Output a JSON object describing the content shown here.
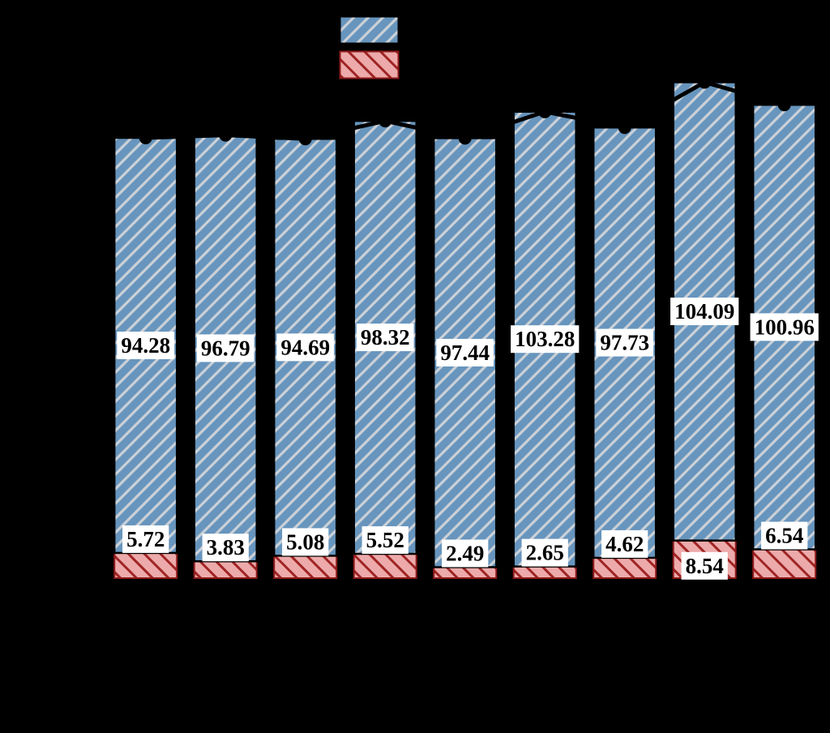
{
  "page": {
    "background": "#000000"
  },
  "colors": {
    "blue_fill": "#6795bd",
    "blue_hatch": "#ccd1d7",
    "blue_edge": "#000000",
    "red_fill": "#edaaaa",
    "red_hatch": "#a02424",
    "red_edge": "#8e1a1a",
    "line": "#000000",
    "marker": "#000000",
    "label_text": "#000000",
    "label_bg": "#ffffff"
  },
  "legend": {
    "items": [
      {
        "id": "blue-hatched-patch",
        "hatch_direction": "/",
        "fill": "#6795bd"
      },
      {
        "id": "red-hatched-patch",
        "hatch_direction": "\\",
        "fill": "#edaaaa"
      }
    ]
  },
  "chart_data": {
    "type": "bar",
    "stacked": true,
    "orientation": "vertical",
    "n_bars": 9,
    "series": [
      {
        "name": "blue-upper-segment",
        "values": [
          94.28,
          96.79,
          94.69,
          98.32,
          97.44,
          103.28,
          97.73,
          104.09,
          100.96
        ],
        "labels": [
          "94.28",
          "96.79",
          "94.69",
          "98.32",
          "97.44",
          "103.28",
          "97.73",
          "104.09",
          "100.96"
        ]
      },
      {
        "name": "red-lower-segment",
        "values": [
          5.72,
          3.83,
          5.08,
          5.52,
          2.49,
          2.65,
          4.62,
          8.54,
          6.54
        ],
        "labels": [
          "5.72",
          "3.83",
          "5.08",
          "5.52",
          "2.49",
          "2.65",
          "4.62",
          "8.54",
          "6.54"
        ]
      }
    ],
    "line_overlay": {
      "type": "line",
      "marker": "circle",
      "values_are": "stack-totals",
      "values": [
        100.0,
        100.62,
        99.77,
        103.84,
        99.93,
        105.93,
        102.35,
        112.63,
        107.5
      ]
    },
    "value_labels_visible": true,
    "axis_tick_labels_visible": false,
    "title": "",
    "xlabel": "",
    "ylabel": ""
  }
}
